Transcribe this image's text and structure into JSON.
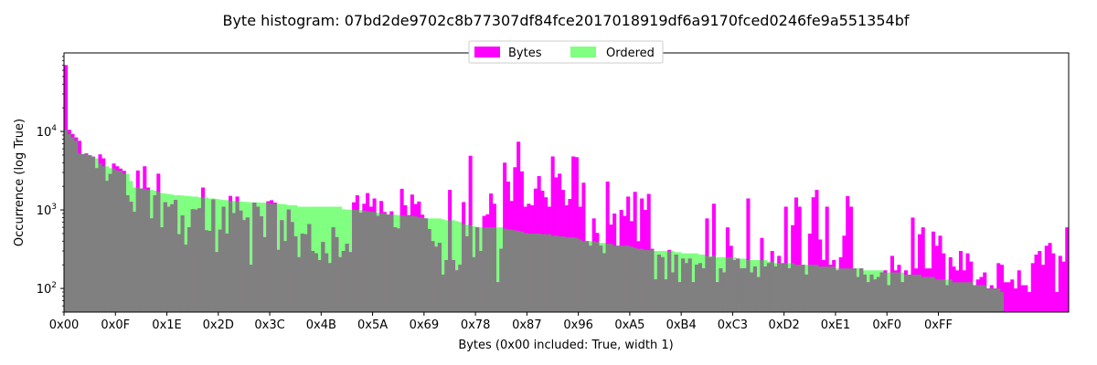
{
  "chart_data": {
    "type": "bar",
    "title": "Byte histogram: 07bd2de9702c8b77307df84fce2017018919df6a9170fced0246fe9a551354bf",
    "xlabel": "Bytes (0x00 included: True, width 1)",
    "ylabel": "Occurrence (log True)",
    "yscale": "log",
    "ylim": [
      50,
      100000
    ],
    "xlim": [
      0,
      255
    ],
    "x_ticks": [
      "0x00",
      "0x0F",
      "0x1E",
      "0x2D",
      "0x3C",
      "0x4B",
      "0x5A",
      "0x69",
      "0x78",
      "0x87",
      "0x96",
      "0xA5",
      "0xB4",
      "0xC3",
      "0xD2",
      "0xE1",
      "0xF0",
      "0xFF"
    ],
    "y_ticks": [
      {
        "value": 100,
        "base": "10",
        "exp": "2"
      },
      {
        "value": 1000,
        "base": "10",
        "exp": "3"
      },
      {
        "value": 10000,
        "base": "10",
        "exp": "4"
      }
    ],
    "legend": {
      "placement": "top-center"
    },
    "series": [
      {
        "name": "Bytes",
        "color": "#ff00ff",
        "values": [
          70000,
          10500,
          9300,
          8400,
          7600,
          5150,
          5250,
          4970,
          4770,
          3400,
          5100,
          4540,
          2340,
          2880,
          3900,
          3600,
          3360,
          3150,
          1540,
          1270,
          950,
          3180,
          1880,
          3600,
          1930,
          780,
          1530,
          2900,
          600,
          1250,
          1100,
          1180,
          1340,
          490,
          850,
          360,
          600,
          1020,
          1010,
          1050,
          1930,
          550,
          540,
          1360,
          290,
          560,
          1100,
          500,
          1510,
          910,
          1480,
          980,
          740,
          800,
          200,
          1240,
          1100,
          830,
          450,
          1290,
          1330,
          1240,
          310,
          740,
          400,
          1010,
          700,
          460,
          250,
          500,
          490,
          660,
          300,
          280,
          230,
          390,
          280,
          210,
          600,
          450,
          250,
          300,
          370,
          290,
          1250,
          1540,
          920,
          1200,
          1640,
          1100,
          1400,
          840,
          1300,
          940,
          870,
          960,
          600,
          580,
          1860,
          1150,
          860,
          1570,
          1190,
          1280,
          870,
          780,
          570,
          400,
          340,
          380,
          150,
          230,
          1800,
          230,
          170,
          200,
          1260,
          460,
          4900,
          250,
          600,
          300,
          840,
          880,
          1620,
          1200,
          120,
          320,
          4000,
          2300,
          1300,
          3500,
          7400,
          3100,
          1100,
          1200,
          1150,
          1870,
          2700,
          1760,
          1450,
          1100,
          4800,
          2600,
          2900,
          1800,
          1150,
          1380,
          4800,
          4700,
          1100,
          2220,
          400,
          350,
          780,
          510,
          350,
          280,
          2300,
          650,
          900,
          350,
          1000,
          840,
          1480,
          720,
          1700,
          400,
          1400,
          1000,
          1600,
          320,
          130,
          270,
          250,
          130,
          310,
          160,
          270,
          120,
          240,
          210,
          240,
          120,
          200,
          210,
          180,
          780,
          250,
          1200,
          120,
          180,
          160,
          600,
          350,
          230,
          240,
          180,
          180,
          1400,
          160,
          190,
          140,
          440,
          190,
          210,
          300,
          190,
          260,
          210,
          1100,
          180,
          640,
          1440,
          1100,
          200,
          150,
          500,
          1450,
          1800,
          420,
          230,
          1100,
          200,
          230,
          170,
          250,
          470,
          1500,
          1100,
          180,
          140,
          180,
          150,
          120,
          150,
          130,
          140,
          160,
          170,
          110,
          260,
          170,
          200,
          120,
          170,
          150,
          800,
          180,
          490,
          600,
          180,
          180,
          530,
          350,
          470,
          280,
          110,
          250,
          190,
          170,
          300,
          170,
          280,
          220,
          110,
          130,
          140,
          160,
          100,
          110,
          100,
          210,
          200,
          120,
          120,
          130,
          100,
          170,
          110,
          110,
          90,
          210,
          270,
          300,
          200,
          350,
          380,
          280,
          90,
          260,
          220,
          600
        ]
      },
      {
        "name": "Ordered",
        "color": "#80ff80",
        "values": [
          10500,
          9300,
          8400,
          7600,
          5250,
          5150,
          5100,
          4970,
          4770,
          4540,
          3900,
          3600,
          3600,
          3400,
          3360,
          3180,
          3150,
          2900,
          2880,
          2340,
          1930,
          1930,
          1880,
          1860,
          1800,
          1800,
          1760,
          1700,
          1640,
          1620,
          1600,
          1570,
          1540,
          1540,
          1530,
          1510,
          1500,
          1480,
          1480,
          1450,
          1450,
          1440,
          1400,
          1400,
          1380,
          1360,
          1340,
          1330,
          1300,
          1300,
          1290,
          1280,
          1270,
          1260,
          1250,
          1250,
          1250,
          1240,
          1240,
          1240,
          1200,
          1200,
          1200,
          1190,
          1180,
          1150,
          1150,
          1150,
          1100,
          1100,
          1100,
          1100,
          1100,
          1100,
          1100,
          1100,
          1100,
          1100,
          1100,
          1100,
          1100,
          1020,
          1010,
          1010,
          1010,
          1000,
          1000,
          980,
          960,
          950,
          940,
          920,
          910,
          900,
          880,
          870,
          870,
          860,
          850,
          840,
          840,
          840,
          830,
          800,
          800,
          780,
          780,
          780,
          780,
          780,
          760,
          740,
          740,
          740,
          720,
          700,
          660,
          650,
          640,
          620,
          600,
          600,
          600,
          600,
          600,
          600,
          600,
          600,
          580,
          570,
          560,
          550,
          540,
          530,
          510,
          500,
          500,
          500,
          500,
          490,
          490,
          490,
          470,
          470,
          460,
          460,
          450,
          450,
          450,
          440,
          420,
          400,
          400,
          400,
          400,
          390,
          380,
          380,
          370,
          370,
          350,
          350,
          350,
          350,
          350,
          340,
          330,
          320,
          320,
          310,
          310,
          310,
          300,
          300,
          300,
          300,
          300,
          300,
          290,
          290,
          280,
          280,
          280,
          280,
          280,
          270,
          270,
          260,
          260,
          260,
          250,
          250,
          250,
          250,
          250,
          250,
          240,
          240,
          240,
          230,
          230,
          230,
          230,
          230,
          230,
          220,
          220,
          210,
          210,
          210,
          210,
          210,
          210,
          200,
          200,
          200,
          200,
          200,
          200,
          200,
          190,
          190,
          190,
          190,
          190,
          180,
          180,
          180,
          180,
          180,
          180,
          180,
          180,
          170,
          170,
          170,
          170,
          170,
          170,
          160,
          160,
          160,
          160,
          160,
          160,
          150,
          150,
          150,
          150,
          150,
          140,
          140,
          140,
          140,
          130,
          130,
          130,
          130,
          130,
          120,
          120,
          120,
          120,
          120,
          120,
          110,
          110,
          110,
          110,
          100,
          100,
          100,
          100,
          90
        ]
      }
    ]
  }
}
